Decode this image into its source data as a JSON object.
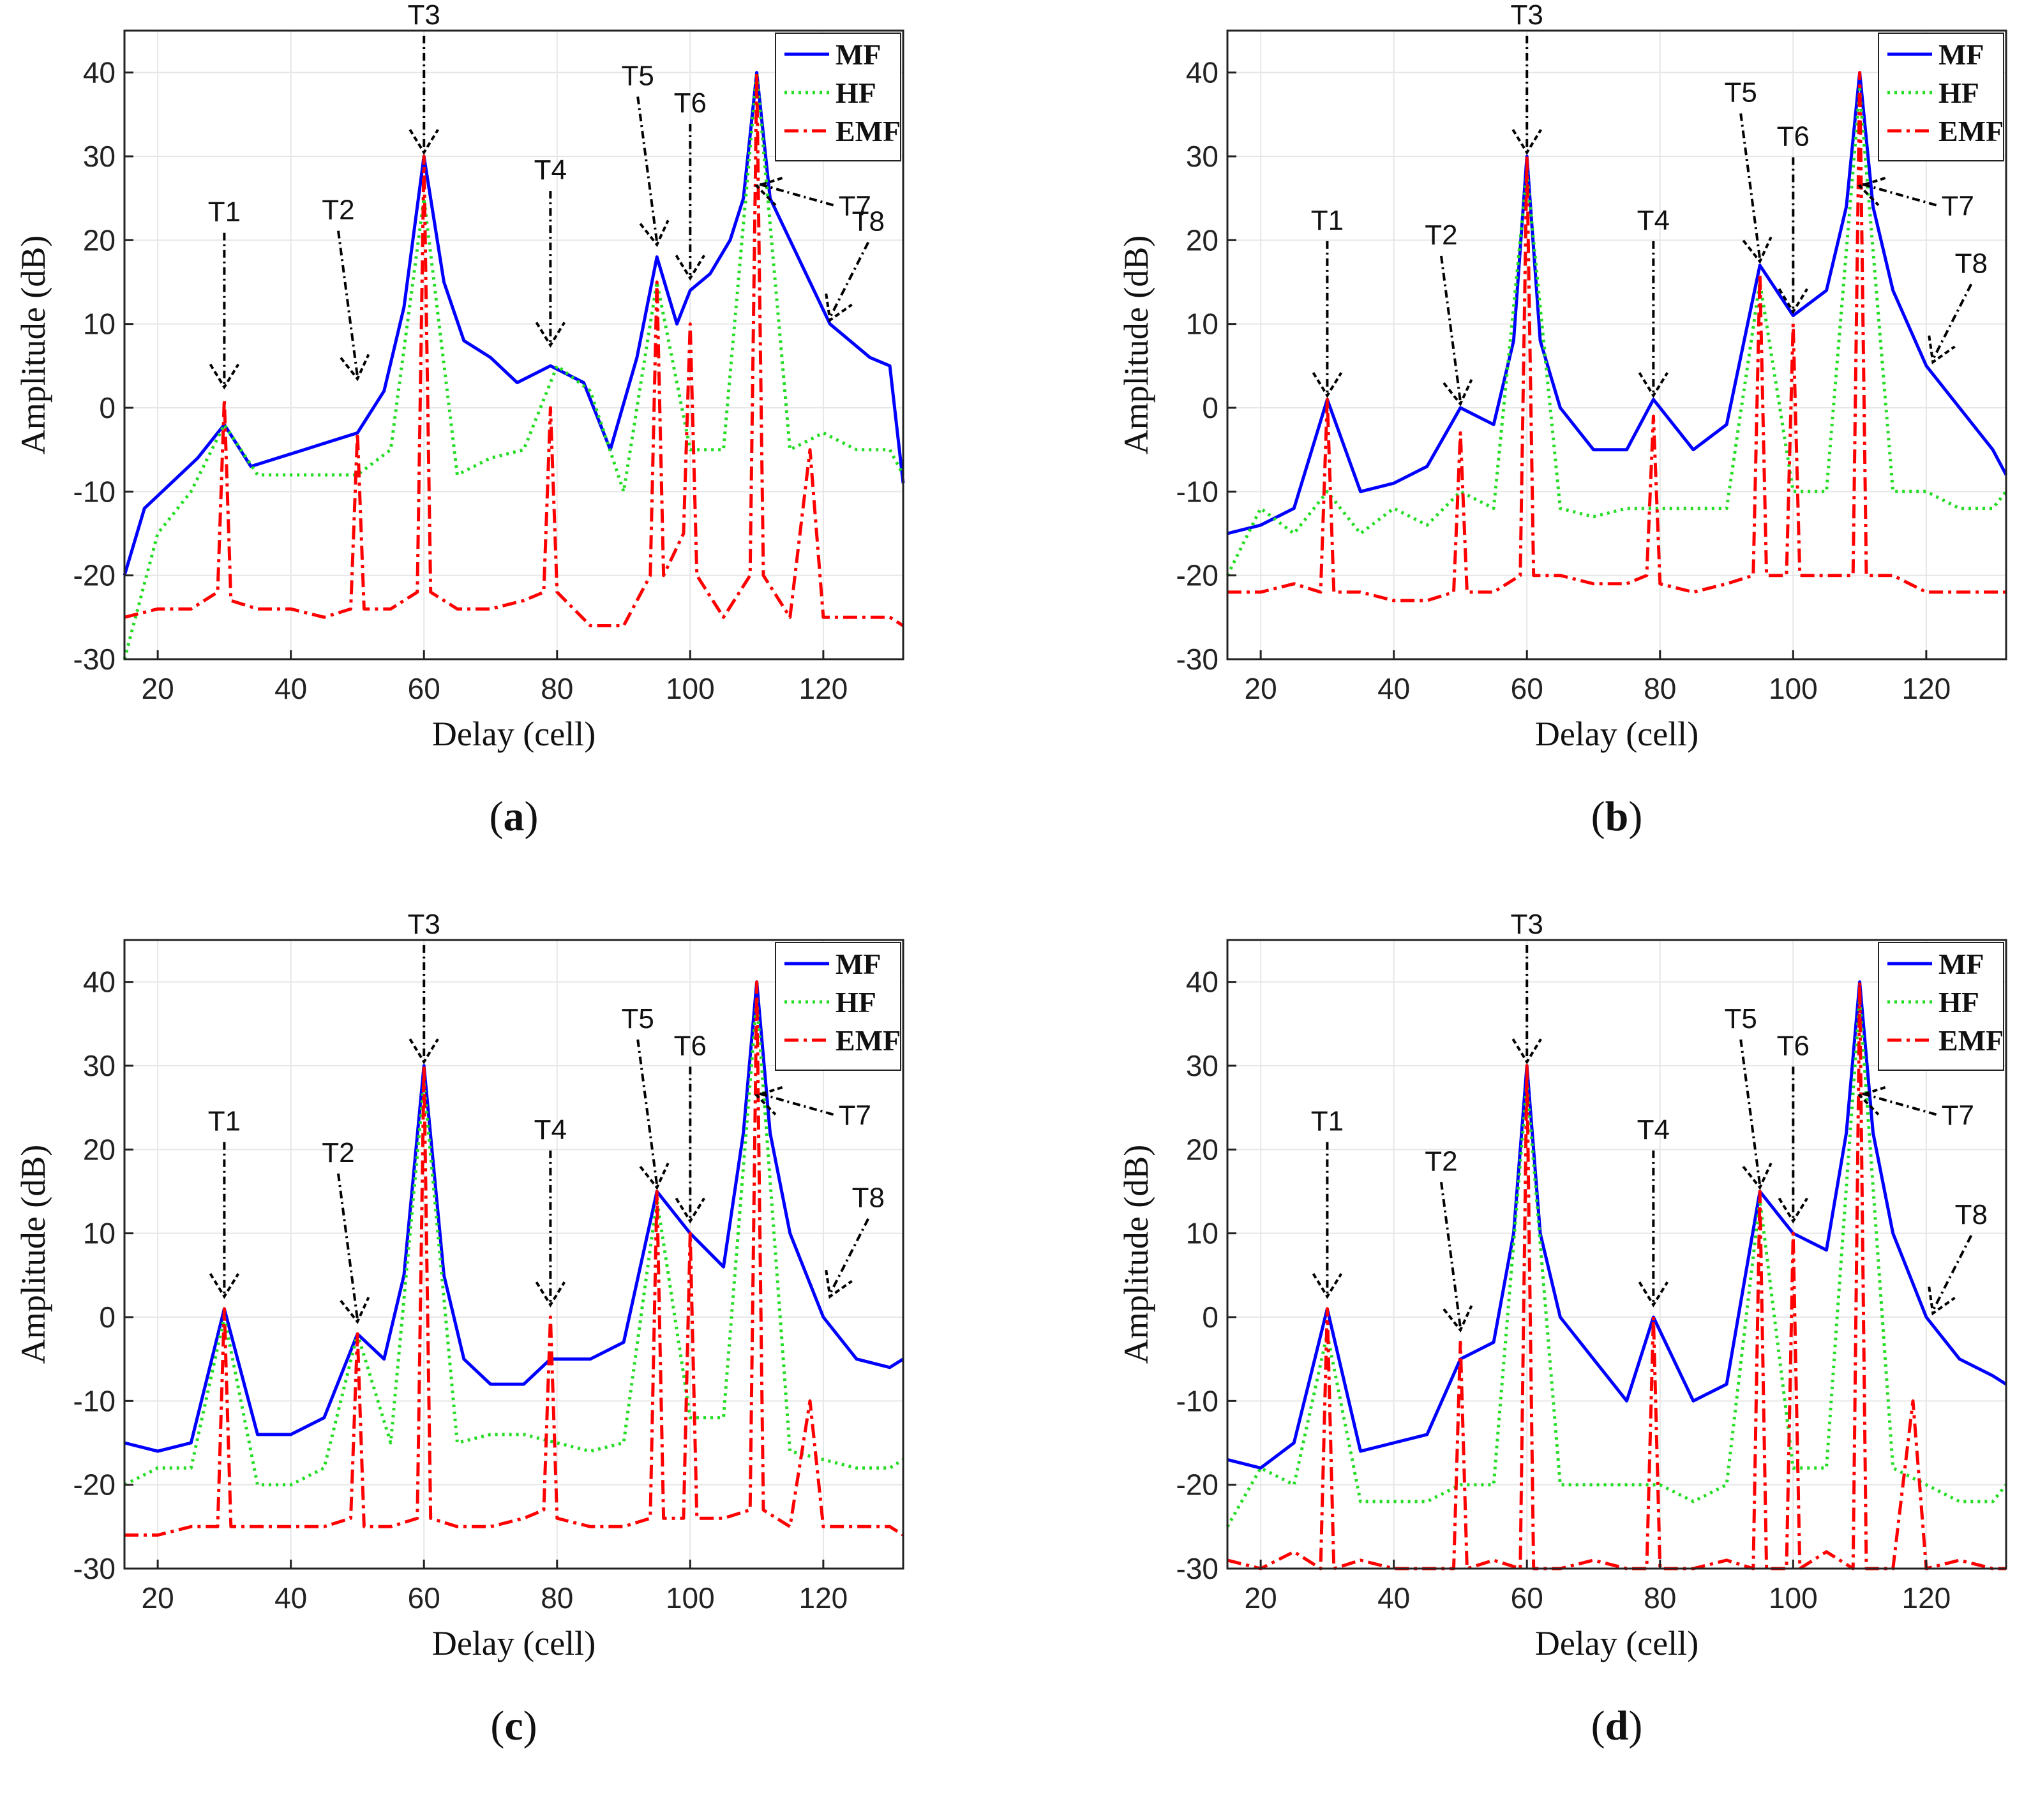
{
  "figure": {
    "series_legend": [
      "MF",
      "HF",
      "EMF"
    ],
    "colors": {
      "MF": "#0000ff",
      "HF": "#22dd22",
      "EMF": "#ff0000",
      "arrow": "#000000",
      "grid": "#e6e6e6"
    }
  },
  "chart_data": [
    {
      "type": "line",
      "panel": "a",
      "caption": {
        "open": "(",
        "letter": "a",
        "close": ")"
      },
      "xlabel": "Delay (cell)",
      "ylabel": "Amplitude (dB)",
      "xlim": [
        15,
        132
      ],
      "ylim": [
        -30,
        45
      ],
      "xticks": [
        20,
        40,
        60,
        80,
        100,
        120
      ],
      "yticks": [
        -30,
        -20,
        -10,
        0,
        10,
        20,
        30,
        40
      ],
      "grid": true,
      "legend": "top-right",
      "targets": [
        {
          "label": "T1",
          "x": 30,
          "y": 2
        },
        {
          "label": "T2",
          "x": 50,
          "y": 3
        },
        {
          "label": "T3",
          "x": 60,
          "y": 30
        },
        {
          "label": "T4",
          "x": 79,
          "y": 7
        },
        {
          "label": "T5",
          "x": 95,
          "y": 19
        },
        {
          "label": "T6",
          "x": 100,
          "y": 15
        },
        {
          "label": "T7",
          "x": 110,
          "y": 26
        },
        {
          "label": "T8",
          "x": 121,
          "y": 10
        }
      ],
      "series": [
        {
          "name": "MF",
          "x": [
            15,
            18,
            22,
            26,
            30,
            34,
            38,
            42,
            46,
            50,
            54,
            57,
            60,
            63,
            66,
            70,
            74,
            79,
            84,
            88,
            92,
            95,
            98,
            100,
            103,
            106,
            108,
            110,
            112,
            115,
            118,
            121,
            124,
            127,
            130,
            132
          ],
          "y": [
            -20,
            -12,
            -9,
            -6,
            -2,
            -7,
            -6,
            -5,
            -4,
            -3,
            2,
            12,
            30,
            15,
            8,
            6,
            3,
            5,
            3,
            -5,
            6,
            18,
            10,
            14,
            16,
            20,
            25,
            40,
            25,
            20,
            15,
            10,
            8,
            6,
            5,
            -9
          ]
        },
        {
          "name": "HF",
          "x": [
            15,
            20,
            25,
            30,
            35,
            40,
            45,
            50,
            55,
            60,
            65,
            70,
            75,
            80,
            85,
            90,
            95,
            100,
            105,
            110,
            115,
            120,
            125,
            130,
            132
          ],
          "y": [
            -30,
            -15,
            -10,
            -2,
            -8,
            -8,
            -8,
            -8,
            -5,
            25,
            -8,
            -6,
            -5,
            5,
            2,
            -10,
            15,
            -5,
            -5,
            40,
            -5,
            -3,
            -5,
            -5,
            -8
          ]
        },
        {
          "name": "EMF",
          "x": [
            15,
            20,
            25,
            29,
            30,
            31,
            35,
            40,
            45,
            49,
            50,
            51,
            55,
            59,
            60,
            61,
            65,
            70,
            75,
            78,
            79,
            80,
            85,
            90,
            94,
            95,
            96,
            99,
            100,
            101,
            105,
            109,
            110,
            111,
            115,
            118,
            120,
            125,
            130,
            132
          ],
          "y": [
            -25,
            -24,
            -24,
            -22,
            1,
            -23,
            -24,
            -24,
            -25,
            -24,
            -3,
            -24,
            -24,
            -22,
            30,
            -22,
            -24,
            -24,
            -23,
            -22,
            0,
            -22,
            -26,
            -26,
            -20,
            15,
            -20,
            -15,
            10,
            -20,
            -25,
            -20,
            40,
            -20,
            -25,
            -5,
            -25,
            -25,
            -25,
            -26
          ]
        }
      ]
    },
    {
      "type": "line",
      "panel": "b",
      "caption": {
        "open": "(",
        "letter": "b",
        "close": ")"
      },
      "xlabel": "Delay (cell)",
      "ylabel": "Amplitude (dB)",
      "xlim": [
        15,
        132
      ],
      "ylim": [
        -30,
        45
      ],
      "xticks": [
        20,
        40,
        60,
        80,
        100,
        120
      ],
      "yticks": [
        -30,
        -20,
        -10,
        0,
        10,
        20,
        30,
        40
      ],
      "grid": true,
      "legend": "top-right",
      "targets": [
        {
          "label": "T1",
          "x": 30,
          "y": 1
        },
        {
          "label": "T2",
          "x": 50,
          "y": 0
        },
        {
          "label": "T3",
          "x": 60,
          "y": 30
        },
        {
          "label": "T4",
          "x": 79,
          "y": 1
        },
        {
          "label": "T5",
          "x": 95,
          "y": 17
        },
        {
          "label": "T6",
          "x": 100,
          "y": 11
        },
        {
          "label": "T7",
          "x": 110,
          "y": 26
        },
        {
          "label": "T8",
          "x": 121,
          "y": 5
        }
      ],
      "series": [
        {
          "name": "MF",
          "x": [
            15,
            20,
            25,
            30,
            35,
            40,
            45,
            50,
            55,
            58,
            60,
            62,
            65,
            70,
            75,
            79,
            85,
            90,
            95,
            100,
            105,
            108,
            110,
            112,
            115,
            120,
            125,
            130,
            132
          ],
          "y": [
            -15,
            -14,
            -12,
            1,
            -10,
            -9,
            -7,
            0,
            -2,
            8,
            30,
            8,
            0,
            -5,
            -5,
            1,
            -5,
            -2,
            17,
            11,
            14,
            24,
            40,
            24,
            14,
            5,
            0,
            -5,
            -8
          ]
        },
        {
          "name": "HF",
          "x": [
            15,
            20,
            25,
            30,
            35,
            40,
            45,
            50,
            55,
            60,
            65,
            70,
            75,
            80,
            85,
            90,
            95,
            100,
            105,
            110,
            115,
            120,
            125,
            130,
            132
          ],
          "y": [
            -20,
            -12,
            -15,
            -10,
            -15,
            -12,
            -14,
            -10,
            -12,
            28,
            -12,
            -13,
            -12,
            -12,
            -12,
            -12,
            15,
            -10,
            -10,
            38,
            -10,
            -10,
            -12,
            -12,
            -10
          ]
        },
        {
          "name": "EMF",
          "x": [
            15,
            20,
            25,
            29,
            30,
            31,
            35,
            40,
            45,
            49,
            50,
            51,
            55,
            59,
            60,
            61,
            65,
            70,
            75,
            78,
            79,
            80,
            85,
            90,
            94,
            95,
            96,
            99,
            100,
            101,
            105,
            109,
            110,
            111,
            115,
            120,
            125,
            130,
            132
          ],
          "y": [
            -22,
            -22,
            -21,
            -22,
            1,
            -22,
            -22,
            -23,
            -23,
            -22,
            -3,
            -22,
            -22,
            -20,
            30,
            -20,
            -20,
            -21,
            -21,
            -20,
            -1,
            -21,
            -22,
            -21,
            -20,
            16,
            -20,
            -20,
            10,
            -20,
            -20,
            -20,
            40,
            -20,
            -20,
            -22,
            -22,
            -22,
            -22
          ]
        }
      ]
    },
    {
      "type": "line",
      "panel": "c",
      "caption": {
        "open": "(",
        "letter": "c",
        "close": ")"
      },
      "xlabel": "Delay (cell)",
      "ylabel": "Amplitude (dB)",
      "xlim": [
        15,
        132
      ],
      "ylim": [
        -30,
        45
      ],
      "xticks": [
        20,
        40,
        60,
        80,
        100,
        120
      ],
      "yticks": [
        -30,
        -20,
        -10,
        0,
        10,
        20,
        30,
        40
      ],
      "grid": true,
      "legend": "top-right",
      "targets": [
        {
          "label": "T1",
          "x": 30,
          "y": 2
        },
        {
          "label": "T2",
          "x": 50,
          "y": -1
        },
        {
          "label": "T3",
          "x": 60,
          "y": 30
        },
        {
          "label": "T4",
          "x": 79,
          "y": 1
        },
        {
          "label": "T5",
          "x": 95,
          "y": 15
        },
        {
          "label": "T6",
          "x": 100,
          "y": 11
        },
        {
          "label": "T7",
          "x": 110,
          "y": 26
        },
        {
          "label": "T8",
          "x": 121,
          "y": 2
        }
      ],
      "series": [
        {
          "name": "MF",
          "x": [
            15,
            20,
            25,
            30,
            35,
            40,
            45,
            50,
            54,
            57,
            60,
            63,
            66,
            70,
            75,
            79,
            85,
            90,
            95,
            100,
            105,
            108,
            110,
            112,
            115,
            120,
            125,
            130,
            132
          ],
          "y": [
            -15,
            -16,
            -15,
            1,
            -14,
            -14,
            -12,
            -2,
            -5,
            5,
            30,
            5,
            -5,
            -8,
            -8,
            -5,
            -5,
            -3,
            15,
            10,
            6,
            22,
            40,
            22,
            10,
            0,
            -5,
            -6,
            -5
          ]
        },
        {
          "name": "HF",
          "x": [
            15,
            20,
            25,
            30,
            35,
            40,
            45,
            50,
            55,
            60,
            65,
            70,
            75,
            80,
            85,
            90,
            95,
            100,
            105,
            110,
            115,
            120,
            125,
            130,
            132
          ],
          "y": [
            -20,
            -18,
            -18,
            0,
            -20,
            -20,
            -18,
            -2,
            -15,
            28,
            -15,
            -14,
            -14,
            -15,
            -16,
            -15,
            14,
            -12,
            -12,
            38,
            -16,
            -17,
            -18,
            -18,
            -17
          ]
        },
        {
          "name": "EMF",
          "x": [
            15,
            20,
            25,
            29,
            30,
            31,
            35,
            40,
            45,
            49,
            50,
            51,
            55,
            59,
            60,
            61,
            65,
            70,
            75,
            78,
            79,
            80,
            85,
            90,
            94,
            95,
            96,
            99,
            100,
            101,
            105,
            109,
            110,
            111,
            115,
            118,
            120,
            125,
            130,
            132
          ],
          "y": [
            -26,
            -26,
            -25,
            -25,
            1,
            -25,
            -25,
            -25,
            -25,
            -24,
            -2,
            -25,
            -25,
            -24,
            30,
            -24,
            -25,
            -25,
            -24,
            -23,
            0,
            -24,
            -25,
            -25,
            -24,
            15,
            -24,
            -24,
            10,
            -24,
            -24,
            -23,
            40,
            -23,
            -25,
            -10,
            -25,
            -25,
            -25,
            -26
          ]
        }
      ]
    },
    {
      "type": "line",
      "panel": "d",
      "caption": {
        "open": "(",
        "letter": "d",
        "close": ")"
      },
      "xlabel": "Delay (cell)",
      "ylabel": "Amplitude (dB)",
      "xlim": [
        15,
        132
      ],
      "ylim": [
        -30,
        45
      ],
      "xticks": [
        20,
        40,
        60,
        80,
        100,
        120
      ],
      "yticks": [
        -30,
        -20,
        -10,
        0,
        10,
        20,
        30,
        40
      ],
      "grid": true,
      "legend": "top-right",
      "targets": [
        {
          "label": "T1",
          "x": 30,
          "y": 2
        },
        {
          "label": "T2",
          "x": 50,
          "y": -2
        },
        {
          "label": "T3",
          "x": 60,
          "y": 30
        },
        {
          "label": "T4",
          "x": 79,
          "y": 1
        },
        {
          "label": "T5",
          "x": 95,
          "y": 15
        },
        {
          "label": "T6",
          "x": 100,
          "y": 11
        },
        {
          "label": "T7",
          "x": 110,
          "y": 26
        },
        {
          "label": "T8",
          "x": 121,
          "y": 0
        }
      ],
      "series": [
        {
          "name": "MF",
          "x": [
            15,
            20,
            25,
            30,
            35,
            40,
            45,
            50,
            55,
            58,
            60,
            62,
            65,
            70,
            75,
            79,
            85,
            90,
            95,
            100,
            105,
            108,
            110,
            112,
            115,
            120,
            125,
            130,
            132
          ],
          "y": [
            -17,
            -18,
            -15,
            1,
            -16,
            -15,
            -14,
            -5,
            -3,
            10,
            30,
            10,
            0,
            -5,
            -10,
            0,
            -10,
            -8,
            15,
            10,
            8,
            22,
            40,
            22,
            10,
            0,
            -5,
            -7,
            -8
          ]
        },
        {
          "name": "HF",
          "x": [
            15,
            20,
            25,
            30,
            35,
            40,
            45,
            50,
            55,
            60,
            65,
            70,
            75,
            80,
            85,
            90,
            95,
            100,
            105,
            110,
            115,
            120,
            125,
            130,
            132
          ],
          "y": [
            -25,
            -18,
            -20,
            -2,
            -22,
            -22,
            -22,
            -20,
            -20,
            28,
            -20,
            -20,
            -20,
            -20,
            -22,
            -20,
            14,
            -18,
            -18,
            38,
            -18,
            -20,
            -22,
            -22,
            -20
          ]
        },
        {
          "name": "EMF",
          "x": [
            15,
            20,
            25,
            29,
            30,
            31,
            35,
            40,
            45,
            49,
            50,
            51,
            55,
            59,
            60,
            61,
            65,
            70,
            75,
            78,
            79,
            80,
            85,
            90,
            94,
            95,
            96,
            99,
            100,
            101,
            105,
            109,
            110,
            111,
            115,
            118,
            120,
            125,
            130,
            132
          ],
          "y": [
            -29,
            -30,
            -28,
            -30,
            1,
            -30,
            -29,
            -30,
            -30,
            -30,
            -3,
            -30,
            -29,
            -30,
            30,
            -30,
            -30,
            -29,
            -30,
            -30,
            0,
            -30,
            -30,
            -29,
            -30,
            15,
            -30,
            -30,
            10,
            -30,
            -28,
            -30,
            40,
            -30,
            -30,
            -10,
            -30,
            -29,
            -30,
            -30
          ]
        }
      ]
    }
  ]
}
